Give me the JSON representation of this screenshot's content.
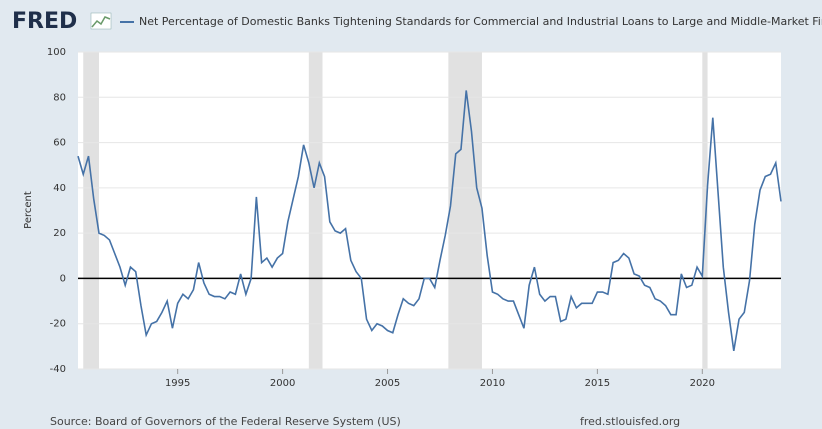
{
  "chart_data": {
    "type": "line",
    "brand": "FRED",
    "title": "Net Percentage of Domestic Banks Tightening Standards for Commercial and Industrial Loans to Large and Middle-Market Firms",
    "y_axis_label": "Percent",
    "source": "Source: Board of Governors of the Federal Reserve System (US)",
    "site": "fred.stlouisfed.org",
    "xlim": [
      1990.25,
      2023.75
    ],
    "xticks": [
      1995,
      2000,
      2005,
      2010,
      2015,
      2020
    ],
    "ylim": [
      -40,
      100
    ],
    "yticks": [
      -40,
      -20,
      0,
      20,
      40,
      60,
      80,
      100
    ],
    "grid": true,
    "recessions": [
      [
        1990.5,
        1991.25
      ],
      [
        2001.25,
        2001.9
      ],
      [
        2007.9,
        2009.5
      ],
      [
        2020.0,
        2020.25
      ]
    ],
    "x": [
      1990.25,
      1990.5,
      1990.75,
      1991,
      1991.25,
      1991.5,
      1991.75,
      1992,
      1992.25,
      1992.5,
      1992.75,
      1993,
      1993.25,
      1993.5,
      1993.75,
      1994,
      1994.25,
      1994.5,
      1994.75,
      1995,
      1995.25,
      1995.5,
      1995.75,
      1996,
      1996.25,
      1996.5,
      1996.75,
      1997,
      1997.25,
      1997.5,
      1997.75,
      1998,
      1998.25,
      1998.5,
      1998.75,
      1999,
      1999.25,
      1999.5,
      1999.75,
      2000,
      2000.25,
      2000.5,
      2000.75,
      2001,
      2001.25,
      2001.5,
      2001.75,
      2002,
      2002.25,
      2002.5,
      2002.75,
      2003,
      2003.25,
      2003.5,
      2003.75,
      2004,
      2004.25,
      2004.5,
      2004.75,
      2005,
      2005.25,
      2005.5,
      2005.75,
      2006,
      2006.25,
      2006.5,
      2006.75,
      2007,
      2007.25,
      2007.5,
      2007.75,
      2008,
      2008.25,
      2008.5,
      2008.75,
      2009,
      2009.25,
      2009.5,
      2009.75,
      2010,
      2010.25,
      2010.5,
      2010.75,
      2011,
      2011.25,
      2011.5,
      2011.75,
      2012,
      2012.25,
      2012.5,
      2012.75,
      2013,
      2013.25,
      2013.5,
      2013.75,
      2014,
      2014.25,
      2014.5,
      2014.75,
      2015,
      2015.25,
      2015.5,
      2015.75,
      2016,
      2016.25,
      2016.5,
      2016.75,
      2017,
      2017.25,
      2017.5,
      2017.75,
      2018,
      2018.25,
      2018.5,
      2018.75,
      2019,
      2019.25,
      2019.5,
      2019.75,
      2020,
      2020.25,
      2020.5,
      2020.75,
      2021,
      2021.25,
      2021.5,
      2021.75,
      2022,
      2022.25,
      2022.5,
      2022.75,
      2023,
      2023.25,
      2023.5,
      2023.75
    ],
    "series": [
      {
        "name": "Net Percentage of Domestic Banks Tightening Standards for Commercial and Industrial Loans to Large and Middle-Market Firms",
        "color": "#4572a7",
        "values": [
          54,
          46,
          54,
          35,
          20,
          19,
          17,
          11,
          5,
          -3,
          5,
          3,
          -12,
          -25,
          -20,
          -19,
          -15,
          -10,
          -22,
          -11,
          -7,
          -9,
          -5,
          7,
          -2,
          -7,
          -8,
          -8,
          -9,
          -6,
          -7,
          2,
          -7,
          0,
          36,
          7,
          9,
          5,
          9,
          11,
          25,
          35,
          45,
          59,
          51,
          40,
          51,
          45,
          25,
          21,
          20,
          22,
          8,
          3,
          0,
          -18,
          -23,
          -20,
          -21,
          -23,
          -24,
          -16,
          -9,
          -11,
          -12,
          -9,
          0,
          0,
          -4,
          8,
          19,
          32,
          55,
          57,
          83,
          65,
          40,
          31,
          10,
          -6,
          -7,
          -9,
          -10,
          -10,
          -16,
          -22,
          -3,
          5,
          -7,
          -10,
          -8,
          -8,
          -19,
          -18,
          -8,
          -13,
          -11,
          -11,
          -11,
          -6,
          -6,
          -7,
          7,
          8,
          11,
          9,
          2,
          1,
          -3,
          -4,
          -9,
          -10,
          -12,
          -16,
          -16,
          2,
          -4,
          -3,
          5,
          1,
          41,
          71,
          38,
          5,
          -15,
          -32,
          -18,
          -15,
          -1,
          24,
          39,
          45,
          46,
          51,
          34
        ]
      }
    ]
  }
}
